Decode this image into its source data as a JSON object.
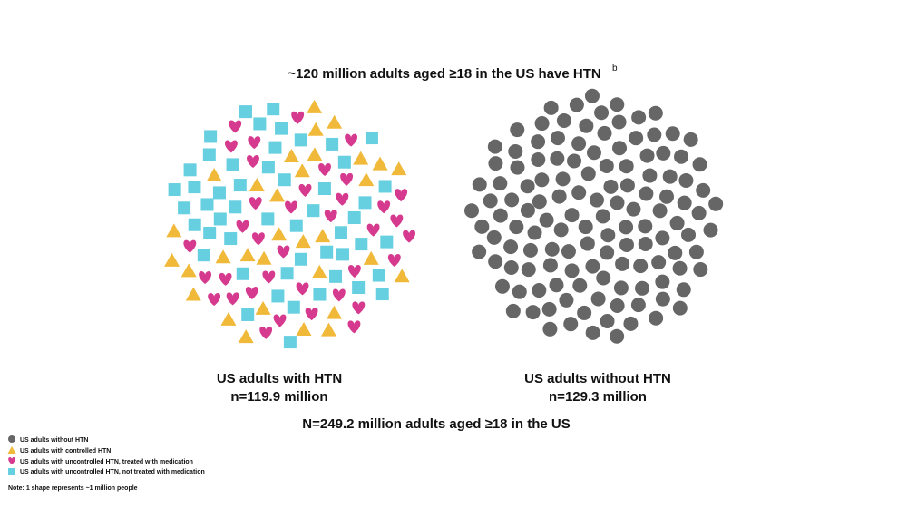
{
  "title": "~120 million adults aged ≥18 in the US have HTN",
  "title_superscript": "b",
  "groups": [
    {
      "label": "US adults with HTN",
      "count": "n=119.9 million"
    },
    {
      "label": "US adults without HTN",
      "count": "n=129.3 million"
    }
  ],
  "total": "N=249.2 million adults aged ≥18 in the US",
  "legend": [
    "US adults without HTN",
    "US adults with controlled HTN",
    "US adults with uncontrolled HTN, treated with medication",
    "US adults with uncontrolled HTN, not treated with medication"
  ],
  "note": "Note: 1 shape represents ~1 million people"
}
